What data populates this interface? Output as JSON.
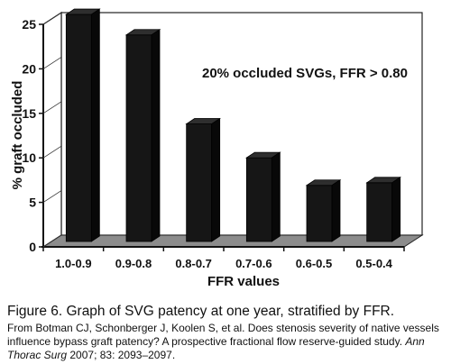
{
  "chart_data": {
    "type": "bar",
    "categories": [
      "1.0-0.9",
      "0.9-0.8",
      "0.8-0.7",
      "0.7-0.6",
      "0.6-0.5",
      "0.5-0.4"
    ],
    "values": [
      25.5,
      23.2,
      13.2,
      9.4,
      6.3,
      6.6
    ],
    "xlabel": "FFR values",
    "ylabel": "% graft occluded",
    "ylim": [
      0,
      25
    ],
    "yticks": [
      "0",
      "5",
      "10",
      "15",
      "20",
      "25"
    ],
    "annotation": "20% occluded SVGs, FFR > 0.80",
    "grid": false,
    "bar_color": "#161616",
    "floor_color": "#8c8c8c"
  },
  "caption": {
    "title": "Figure 6. Graph of SVG patency at one year, stratified by FFR.",
    "source_text": "From Botman CJ, Schonberger J, Koolen S, et al. Does stenosis severity of native vessels influence bypass graft patency? A prospective fractional flow reserve-guided study.",
    "journal": "Ann Thorac Surg",
    "citation": "2007; 83: 2093–2097."
  }
}
